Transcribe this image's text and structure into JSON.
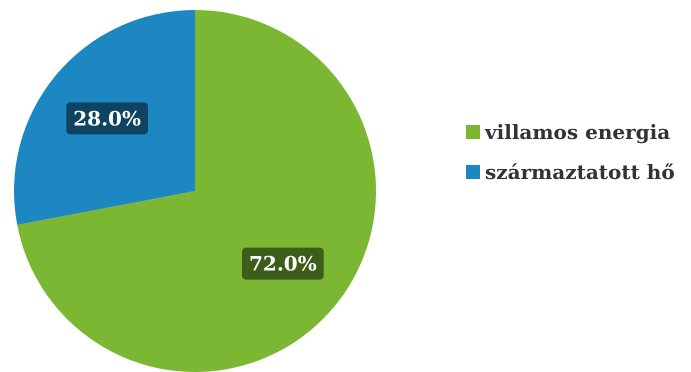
{
  "chart_data": {
    "type": "pie",
    "title": "",
    "categories": [
      "villamos energia",
      "származtatott hő"
    ],
    "values": [
      72.0,
      28.0
    ],
    "data_labels": [
      "72.0%",
      "28.0%"
    ],
    "colors": [
      "#7cb734",
      "#1c87c1"
    ],
    "label_bg_colors": [
      "#3e5c1a",
      "#0e4461"
    ],
    "legend": {
      "position": "right",
      "entries": [
        "villamos energia",
        "származtatott hő"
      ]
    }
  }
}
